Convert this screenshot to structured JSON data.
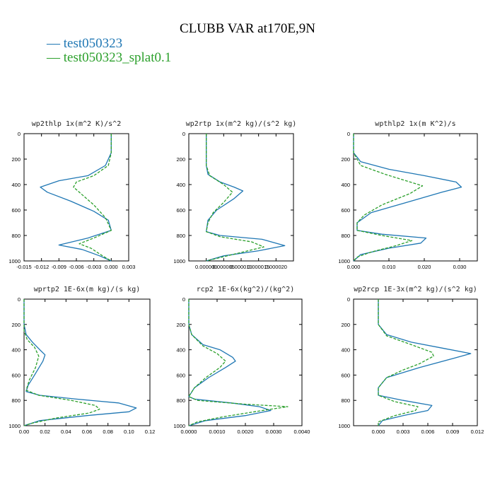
{
  "title": "CLUBB VAR at170E,9N",
  "legend": [
    {
      "label": "test050323",
      "color": "#1f77b4"
    },
    {
      "label": "test050323_splat0.1",
      "color": "#2ca02c"
    }
  ],
  "chart_data": [
    {
      "type": "line",
      "title": "wp2thlp   1x(m^2 K)/s^2",
      "xlim": [
        -0.015,
        0.003
      ],
      "xticks": [
        -0.015,
        -0.012,
        -0.009,
        -0.006,
        -0.003,
        0.0,
        0.003
      ],
      "xtick_labels": [
        "-0.015",
        "-0.012",
        "-0.009",
        "-0.006",
        "-0.003",
        "0.000",
        "0.003"
      ],
      "ylim": [
        1000,
        0
      ],
      "yticks": [
        0,
        200,
        400,
        600,
        800,
        1000
      ],
      "series": [
        {
          "color": "#1f77b4",
          "dash": "solid",
          "points": [
            [
              0.0,
              0
            ],
            [
              0.0,
              150
            ],
            [
              -0.001,
              250
            ],
            [
              -0.004,
              330
            ],
            [
              -0.009,
              370
            ],
            [
              -0.0122,
              420
            ],
            [
              -0.011,
              460
            ],
            [
              -0.007,
              530
            ],
            [
              -0.003,
              610
            ],
            [
              -0.0005,
              680
            ],
            [
              0.0,
              760
            ],
            [
              -0.004,
              820
            ],
            [
              -0.009,
              875
            ],
            [
              -0.005,
              910
            ],
            [
              -0.002,
              960
            ],
            [
              0.0,
              1000
            ]
          ]
        },
        {
          "color": "#2ca02c",
          "dash": "dashed",
          "points": [
            [
              0.0,
              0
            ],
            [
              0.0,
              150
            ],
            [
              -0.0005,
              250
            ],
            [
              -0.003,
              330
            ],
            [
              -0.006,
              380
            ],
            [
              -0.0065,
              420
            ],
            [
              -0.0055,
              460
            ],
            [
              -0.003,
              560
            ],
            [
              -0.001,
              660
            ],
            [
              0.0,
              760
            ],
            [
              -0.003,
              820
            ],
            [
              -0.0055,
              865
            ],
            [
              -0.0035,
              900
            ],
            [
              -0.0015,
              960
            ],
            [
              0.0,
              1000
            ]
          ]
        }
      ]
    },
    {
      "type": "line",
      "title": "wp2rtp   1x(m^2 kg)/(s^2 kg)",
      "xlim": [
        -5e-06,
        2.5e-05
      ],
      "xticks": [
        0.0,
        5e-06,
        1e-05,
        1.5e-05,
        2e-05
      ],
      "xtick_labels": [
        "0.000000",
        "0.000005",
        "0.000010",
        "0.000015",
        "0.000020"
      ],
      "ylim": [
        1000,
        0
      ],
      "yticks": [
        0,
        200,
        400,
        600,
        800,
        1000
      ],
      "series": [
        {
          "color": "#1f77b4",
          "dash": "solid",
          "points": [
            [
              0.0,
              0
            ],
            [
              0.0,
              250
            ],
            [
              5e-07,
              320
            ],
            [
              4e-06,
              380
            ],
            [
              8e-06,
              420
            ],
            [
              1.05e-05,
              450
            ],
            [
              8e-06,
              510
            ],
            [
              3e-06,
              600
            ],
            [
              5e-07,
              680
            ],
            [
              0.0,
              770
            ],
            [
              4e-06,
              800
            ],
            [
              1.6e-05,
              830
            ],
            [
              2.25e-05,
              880
            ],
            [
              1.5e-05,
              920
            ],
            [
              5e-06,
              960
            ],
            [
              0.0,
              1000
            ]
          ]
        },
        {
          "color": "#2ca02c",
          "dash": "dashed",
          "points": [
            [
              0.0,
              0
            ],
            [
              0.0,
              250
            ],
            [
              1e-06,
              330
            ],
            [
              5e-06,
              400
            ],
            [
              7.5e-06,
              460
            ],
            [
              5e-06,
              540
            ],
            [
              2e-06,
              620
            ],
            [
              5e-07,
              700
            ],
            [
              0.0,
              770
            ],
            [
              4e-06,
              810
            ],
            [
              1.3e-05,
              850
            ],
            [
              1.65e-05,
              890
            ],
            [
              9e-06,
              940
            ],
            [
              3e-06,
              980
            ],
            [
              0.0,
              1000
            ]
          ]
        }
      ]
    },
    {
      "type": "line",
      "title": "wpthlp2   1x(m K^2)/s",
      "xlim": [
        0.0,
        0.035
      ],
      "xticks": [
        0.0,
        0.01,
        0.02,
        0.03
      ],
      "xtick_labels": [
        "0.000",
        "0.010",
        "0.020",
        "0.030"
      ],
      "ylim": [
        1000,
        0
      ],
      "yticks": [
        0,
        200,
        400,
        600,
        800,
        1000
      ],
      "series": [
        {
          "color": "#1f77b4",
          "dash": "solid",
          "points": [
            [
              0.0,
              0
            ],
            [
              0.0,
              150
            ],
            [
              0.002,
              220
            ],
            [
              0.01,
              280
            ],
            [
              0.02,
              330
            ],
            [
              0.029,
              380
            ],
            [
              0.0305,
              420
            ],
            [
              0.025,
              460
            ],
            [
              0.015,
              540
            ],
            [
              0.005,
              620
            ],
            [
              0.001,
              700
            ],
            [
              0.001,
              760
            ],
            [
              0.008,
              790
            ],
            [
              0.0205,
              820
            ],
            [
              0.019,
              860
            ],
            [
              0.01,
              900
            ],
            [
              0.002,
              950
            ],
            [
              0.0,
              1000
            ]
          ]
        },
        {
          "color": "#2ca02c",
          "dash": "dashed",
          "points": [
            [
              0.0,
              0
            ],
            [
              0.0,
              150
            ],
            [
              0.002,
              250
            ],
            [
              0.009,
              320
            ],
            [
              0.016,
              380
            ],
            [
              0.0195,
              410
            ],
            [
              0.016,
              470
            ],
            [
              0.008,
              560
            ],
            [
              0.003,
              640
            ],
            [
              0.001,
              700
            ],
            [
              0.001,
              760
            ],
            [
              0.008,
              800
            ],
            [
              0.0165,
              840
            ],
            [
              0.012,
              880
            ],
            [
              0.005,
              930
            ],
            [
              0.001,
              970
            ],
            [
              0.0,
              1000
            ]
          ]
        }
      ]
    },
    {
      "type": "line",
      "title": "wprtp2   1E-6x(m kg)/(s kg)",
      "xlim": [
        0.0,
        0.12
      ],
      "xticks": [
        0.0,
        0.02,
        0.04,
        0.06,
        0.08,
        0.1,
        0.12
      ],
      "xtick_labels": [
        "0.00",
        "0.02",
        "0.04",
        "0.06",
        "0.08",
        "0.10",
        "0.12"
      ],
      "ylim": [
        1000,
        0
      ],
      "yticks": [
        0,
        200,
        400,
        600,
        800,
        1000
      ],
      "series": [
        {
          "color": "#1f77b4",
          "dash": "solid",
          "points": [
            [
              0.0,
              0
            ],
            [
              0.0,
              200
            ],
            [
              0.002,
              280
            ],
            [
              0.008,
              340
            ],
            [
              0.015,
              400
            ],
            [
              0.02,
              440
            ],
            [
              0.018,
              490
            ],
            [
              0.01,
              600
            ],
            [
              0.004,
              680
            ],
            [
              0.002,
              730
            ],
            [
              0.015,
              760
            ],
            [
              0.05,
              790
            ],
            [
              0.09,
              820
            ],
            [
              0.107,
              860
            ],
            [
              0.1,
              890
            ],
            [
              0.06,
              920
            ],
            [
              0.015,
              960
            ],
            [
              0.0,
              1000
            ]
          ]
        },
        {
          "color": "#2ca02c",
          "dash": "dashed",
          "points": [
            [
              0.0,
              0
            ],
            [
              0.0,
              250
            ],
            [
              0.003,
              320
            ],
            [
              0.01,
              380
            ],
            [
              0.014,
              450
            ],
            [
              0.011,
              540
            ],
            [
              0.005,
              640
            ],
            [
              0.002,
              720
            ],
            [
              0.014,
              760
            ],
            [
              0.045,
              800
            ],
            [
              0.068,
              840
            ],
            [
              0.072,
              870
            ],
            [
              0.062,
              900
            ],
            [
              0.03,
              940
            ],
            [
              0.008,
              980
            ],
            [
              0.0,
              1000
            ]
          ]
        }
      ]
    },
    {
      "type": "line",
      "title": "rcp2   1E-6x(kg^2)/(kg^2)",
      "xlim": [
        0.0,
        0.004
      ],
      "xticks": [
        0.0,
        0.001,
        0.002,
        0.003,
        0.004
      ],
      "xtick_labels": [
        "0.0000",
        "0.0010",
        "0.0020",
        "0.0030",
        "0.0040"
      ],
      "ylim": [
        1000,
        0
      ],
      "yticks": [
        0,
        200,
        400,
        600,
        800,
        1000
      ],
      "series": [
        {
          "color": "#1f77b4",
          "dash": "solid",
          "points": [
            [
              0.0,
              0
            ],
            [
              0.0,
              200
            ],
            [
              0.0001,
              280
            ],
            [
              0.0005,
              360
            ],
            [
              0.0011,
              400
            ],
            [
              0.00155,
              460
            ],
            [
              0.00165,
              490
            ],
            [
              0.0013,
              540
            ],
            [
              0.0007,
              620
            ],
            [
              0.0002,
              700
            ],
            [
              0.0,
              770
            ],
            [
              0.0002,
              790
            ],
            [
              0.0015,
              820
            ],
            [
              0.0025,
              850
            ],
            [
              0.0029,
              880
            ],
            [
              0.002,
              920
            ],
            [
              0.0006,
              960
            ],
            [
              0.0,
              1000
            ]
          ]
        },
        {
          "color": "#2ca02c",
          "dash": "dashed",
          "points": [
            [
              0.0,
              0
            ],
            [
              0.0,
              200
            ],
            [
              0.0001,
              280
            ],
            [
              0.0005,
              370
            ],
            [
              0.001,
              430
            ],
            [
              0.0013,
              490
            ],
            [
              0.0011,
              540
            ],
            [
              0.0006,
              620
            ],
            [
              0.0002,
              700
            ],
            [
              0.0,
              770
            ],
            [
              0.0003,
              800
            ],
            [
              0.002,
              830
            ],
            [
              0.0035,
              850
            ],
            [
              0.0026,
              880
            ],
            [
              0.0012,
              930
            ],
            [
              0.0003,
              970
            ],
            [
              0.0,
              1000
            ]
          ]
        }
      ]
    },
    {
      "type": "line",
      "title": "wp2rcp   1E-3x(m^2 kg)/(s^2 kg)",
      "xlim": [
        -0.003,
        0.012
      ],
      "xticks": [
        0.0,
        0.003,
        0.006,
        0.009,
        0.012
      ],
      "xtick_labels": [
        "0.000",
        "0.003",
        "0.006",
        "0.009",
        "0.012"
      ],
      "ylim": [
        1000,
        0
      ],
      "yticks": [
        0,
        200,
        400,
        600,
        800,
        1000
      ],
      "series": [
        {
          "color": "#1f77b4",
          "dash": "solid",
          "points": [
            [
              0.0,
              0
            ],
            [
              0.0,
              200
            ],
            [
              0.001,
              280
            ],
            [
              0.004,
              340
            ],
            [
              0.008,
              390
            ],
            [
              0.0112,
              430
            ],
            [
              0.009,
              470
            ],
            [
              0.005,
              540
            ],
            [
              0.001,
              620
            ],
            [
              0.0,
              700
            ],
            [
              0.0,
              760
            ],
            [
              0.003,
              800
            ],
            [
              0.0065,
              840
            ],
            [
              0.006,
              880
            ],
            [
              0.003,
              920
            ],
            [
              0.0005,
              960
            ],
            [
              0.0,
              1000
            ]
          ]
        },
        {
          "color": "#2ca02c",
          "dash": "dashed",
          "points": [
            [
              0.0,
              0
            ],
            [
              0.0,
              200
            ],
            [
              0.001,
              290
            ],
            [
              0.004,
              360
            ],
            [
              0.0065,
              420
            ],
            [
              0.0067,
              450
            ],
            [
              0.005,
              510
            ],
            [
              0.003,
              560
            ],
            [
              0.001,
              620
            ],
            [
              0.0,
              700
            ],
            [
              0.0,
              760
            ],
            [
              0.002,
              810
            ],
            [
              0.0048,
              850
            ],
            [
              0.0045,
              880
            ],
            [
              0.002,
              920
            ],
            [
              0.0,
              970
            ],
            [
              0.0,
              1000
            ]
          ]
        }
      ]
    }
  ]
}
